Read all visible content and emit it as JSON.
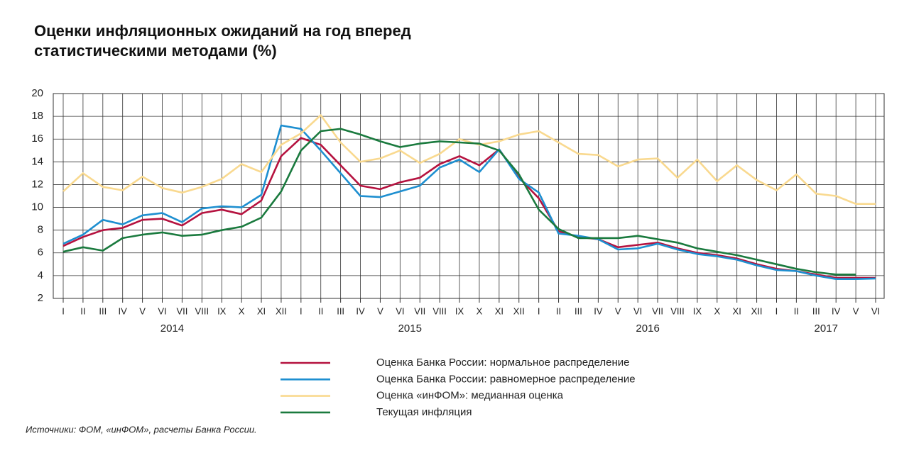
{
  "chart_data": {
    "type": "line",
    "title": [
      "Оценки инфляционных ожиданий на год вперед",
      "статистическими методами (%)"
    ],
    "categories": [
      "I",
      "II",
      "III",
      "IV",
      "V",
      "VI",
      "VII",
      "VIII",
      "IX",
      "X",
      "XI",
      "XII",
      "I",
      "II",
      "III",
      "IV",
      "V",
      "VI",
      "VII",
      "VIII",
      "IX",
      "X",
      "XI",
      "XII",
      "I",
      "II",
      "III",
      "IV",
      "V",
      "VI",
      "VII",
      "VIII",
      "IX",
      "X",
      "XI",
      "XII",
      "I",
      "II",
      "III",
      "IV",
      "V",
      "VI"
    ],
    "years": [
      "2014",
      "2015",
      "2016",
      "2017"
    ],
    "series": [
      {
        "name": "Оценка Банка России: нормальное распределение",
        "color": "#b5123f",
        "values": [
          6.6,
          7.4,
          8.0,
          8.2,
          8.9,
          9.0,
          8.4,
          9.5,
          9.8,
          9.4,
          10.6,
          14.5,
          16.1,
          15.5,
          13.7,
          11.9,
          11.6,
          12.2,
          12.6,
          13.8,
          14.5,
          13.7,
          15.1,
          12.6,
          10.8,
          7.9,
          7.4,
          7.2,
          6.5,
          6.7,
          6.9,
          6.4,
          6.0,
          5.8,
          5.5,
          5.0,
          4.6,
          4.4,
          4.1,
          3.8,
          3.8,
          3.8
        ]
      },
      {
        "name": "Оценка Банка России: равномерное распределение",
        "color": "#1e8fd0",
        "values": [
          6.8,
          7.6,
          8.9,
          8.5,
          9.3,
          9.5,
          8.7,
          9.9,
          10.1,
          10.0,
          11.1,
          17.2,
          16.9,
          15.0,
          13.0,
          11.0,
          10.9,
          11.4,
          11.9,
          13.5,
          14.2,
          13.1,
          15.1,
          12.5,
          11.3,
          7.7,
          7.5,
          7.2,
          6.3,
          6.4,
          6.8,
          6.3,
          5.9,
          5.7,
          5.4,
          4.9,
          4.5,
          4.4,
          4.0,
          3.7,
          3.7,
          3.75
        ]
      },
      {
        "name": "Оценка «инФОМ»: медианная оценка",
        "color": "#f9d98f",
        "values": [
          11.4,
          13.0,
          11.8,
          11.5,
          12.7,
          11.7,
          11.3,
          11.8,
          12.5,
          13.8,
          13.1,
          15.5,
          16.5,
          18.1,
          15.7,
          14.0,
          14.3,
          15.0,
          13.9,
          14.7,
          16.0,
          15.5,
          15.8,
          16.4,
          16.7,
          15.7,
          14.7,
          14.6,
          13.6,
          14.2,
          14.3,
          12.6,
          14.2,
          12.3,
          13.7,
          12.4,
          11.5,
          12.9,
          11.2,
          11.0,
          10.3,
          10.3
        ]
      },
      {
        "name": "Текущая инфляция",
        "color": "#1a7a3e",
        "values": [
          6.1,
          6.5,
          6.2,
          7.3,
          7.6,
          7.8,
          7.5,
          7.6,
          8.0,
          8.3,
          9.1,
          11.4,
          15.0,
          16.7,
          16.9,
          16.4,
          15.8,
          15.3,
          15.6,
          15.8,
          15.7,
          15.6,
          15.0,
          12.9,
          9.8,
          8.1,
          7.3,
          7.3,
          7.3,
          7.5,
          7.2,
          6.9,
          6.4,
          6.1,
          5.8,
          5.4,
          5.0,
          4.6,
          4.3,
          4.1,
          4.1,
          null
        ]
      }
    ],
    "ylim": [
      2,
      20
    ],
    "yticks": [
      2,
      4,
      6,
      8,
      10,
      12,
      14,
      16,
      18,
      20
    ],
    "grid": true,
    "source": "Источники: ФОМ, «инФОМ», расчеты Банка России."
  }
}
